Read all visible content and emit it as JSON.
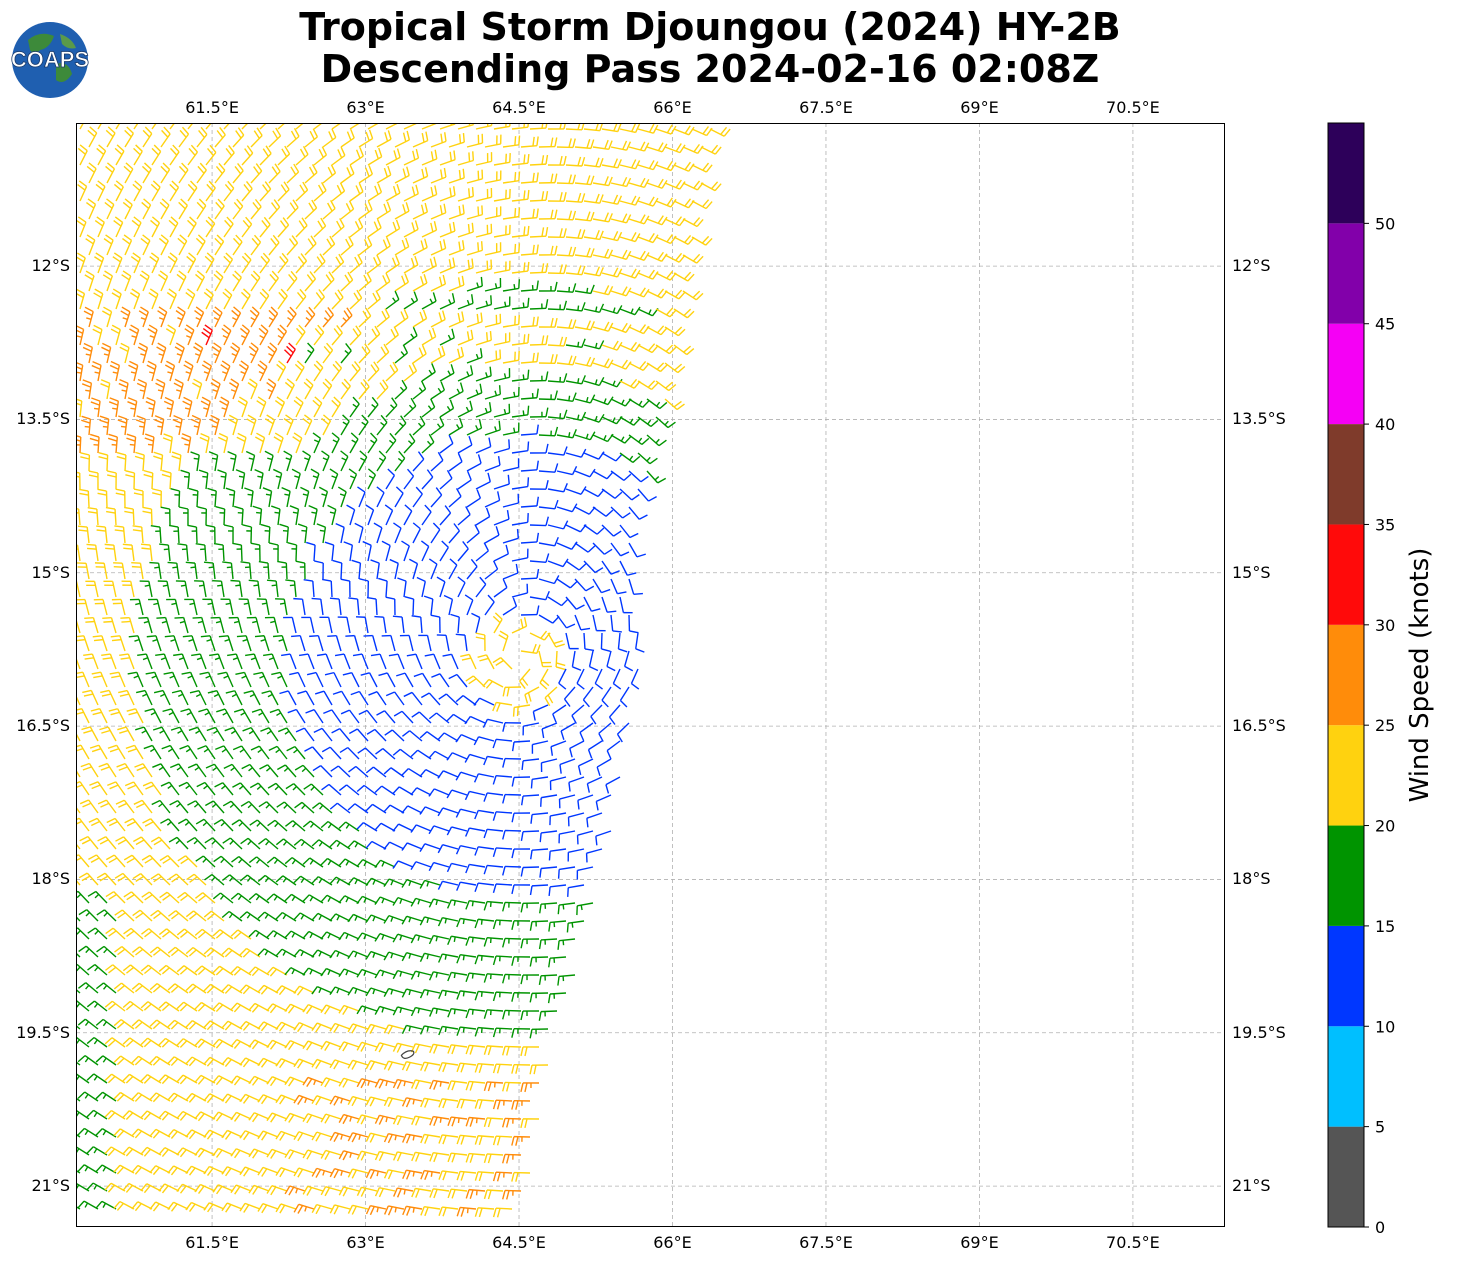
{
  "title": {
    "line1": "Tropical Storm Djoungou (2024) HY-2B",
    "line2": "Descending Pass 2024-02-16 02:08Z"
  },
  "logo": {
    "text": "COAPS"
  },
  "axes": {
    "lon_labels": [
      "61.5°E",
      "63°E",
      "64.5°E",
      "66°E",
      "67.5°E",
      "69°E",
      "70.5°E"
    ],
    "lat_labels": [
      "12°S",
      "13.5°S",
      "15°S",
      "16.5°S",
      "18°S",
      "19.5°S",
      "21°S"
    ],
    "lon_range": [
      60.17,
      71.4
    ],
    "lat_range": [
      -10.6,
      -21.4
    ],
    "grid": true
  },
  "colorbar": {
    "label": "Wind Speed (knots)",
    "ticks": [
      "0",
      "5",
      "10",
      "15",
      "20",
      "25",
      "30",
      "35",
      "40",
      "45",
      "50"
    ],
    "bins": [
      {
        "range": [
          0,
          5
        ],
        "color": "#555555"
      },
      {
        "range": [
          5,
          10
        ],
        "color": "#00bfff"
      },
      {
        "range": [
          10,
          15
        ],
        "color": "#0037ff"
      },
      {
        "range": [
          15,
          20
        ],
        "color": "#009400"
      },
      {
        "range": [
          20,
          25
        ],
        "color": "#ffd20f"
      },
      {
        "range": [
          25,
          30
        ],
        "color": "#ff8c0a"
      },
      {
        "range": [
          30,
          35
        ],
        "color": "#ff0a0a"
      },
      {
        "range": [
          35,
          40
        ],
        "color": "#7f3b2b"
      },
      {
        "range": [
          40,
          45
        ],
        "color": "#f500f5"
      },
      {
        "range": [
          45,
          50
        ],
        "color": "#8200aa"
      },
      {
        "range": [
          50,
          55
        ],
        "color": "#2d005a"
      }
    ]
  },
  "swath": {
    "west_lon": 60.17,
    "east_edge": [
      {
        "lat": -10.6,
        "lon": 66.4
      },
      {
        "lat": -13.0,
        "lon": 66.0
      },
      {
        "lat": -14.8,
        "lon": 65.6
      },
      {
        "lat": -16.0,
        "lon": 65.7
      },
      {
        "lat": -17.6,
        "lon": 65.4
      },
      {
        "lat": -19.5,
        "lon": 64.9
      },
      {
        "lat": -21.4,
        "lon": 64.5
      }
    ],
    "center": {
      "lat": -15.9,
      "lon": 64.5
    }
  }
}
